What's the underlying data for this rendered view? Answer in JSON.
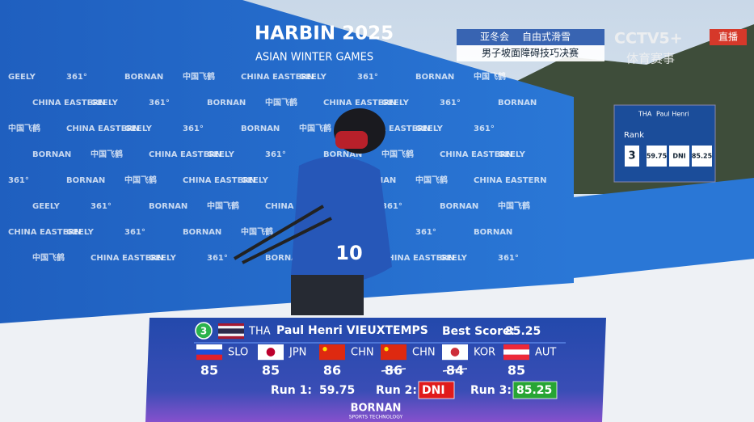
{
  "backdrop": {
    "title": "HARBIN 2025",
    "subtitle": "ASIAN WINTER GAMES",
    "logos": [
      "GEELY",
      "361°",
      "BORNAN",
      "中国飞鹤",
      "CHINA EASTERN"
    ]
  },
  "broadcast": {
    "event_a": "亚冬会",
    "event_b": "自由式滑雪",
    "event_line": "男子坡面障碍技巧决赛",
    "channel": "CCTV5+",
    "channel_sub": "体育赛事",
    "live": "直播"
  },
  "bib": "10",
  "venue_screen": {
    "country": "THA",
    "name": "Paul Henri",
    "label": "Rank",
    "rank": "3",
    "runs": [
      "59.75",
      "DNI",
      "85.25"
    ]
  },
  "scoreboard": {
    "rank": 3,
    "rank_color": "#2bb24c",
    "country": "THA",
    "name": "Paul Henri VIEUXTEMPS",
    "best_label": "Best Score:",
    "best": 85.25,
    "flag": {
      "stripes": [
        "#a51931",
        "#f4f5f8",
        "#2d2a4a",
        "#2d2a4a",
        "#f4f5f8",
        "#a51931"
      ]
    },
    "judges": [
      {
        "country": "SLO",
        "score": 85,
        "dropped": false,
        "flag": {
          "stripes": [
            "#ffffff",
            "#1c4fd8",
            "#e0202a"
          ]
        }
      },
      {
        "country": "JPN",
        "score": 85,
        "dropped": false,
        "flag": {
          "stripes": [
            "#ffffff"
          ],
          "disc": "#bc002d"
        }
      },
      {
        "country": "CHN",
        "score": 86,
        "dropped": false,
        "flag": {
          "stripes": [
            "#de2910"
          ],
          "star": "#ffde00"
        }
      },
      {
        "country": "CHN",
        "score": 86,
        "dropped": true,
        "flag": {
          "stripes": [
            "#de2910"
          ],
          "star": "#ffde00"
        }
      },
      {
        "country": "KOR",
        "score": 84,
        "dropped": true,
        "flag": {
          "stripes": [
            "#ffffff"
          ],
          "disc": "#cd2e3a"
        }
      },
      {
        "country": "AUT",
        "score": 85,
        "dropped": false,
        "flag": {
          "stripes": [
            "#ed2939",
            "#ffffff",
            "#ed2939"
          ]
        }
      }
    ],
    "runs": [
      {
        "label": "Run 1:",
        "score": 59.75
      },
      {
        "label": "Run 2:",
        "score": "DNI",
        "box": "#e01b1b"
      },
      {
        "label": "Run 3:",
        "score": 85.25,
        "box": "#27a534"
      }
    ],
    "sponsor": "BORNAN",
    "sponsor_sub": "SPORTS TECHNOLOGY"
  }
}
